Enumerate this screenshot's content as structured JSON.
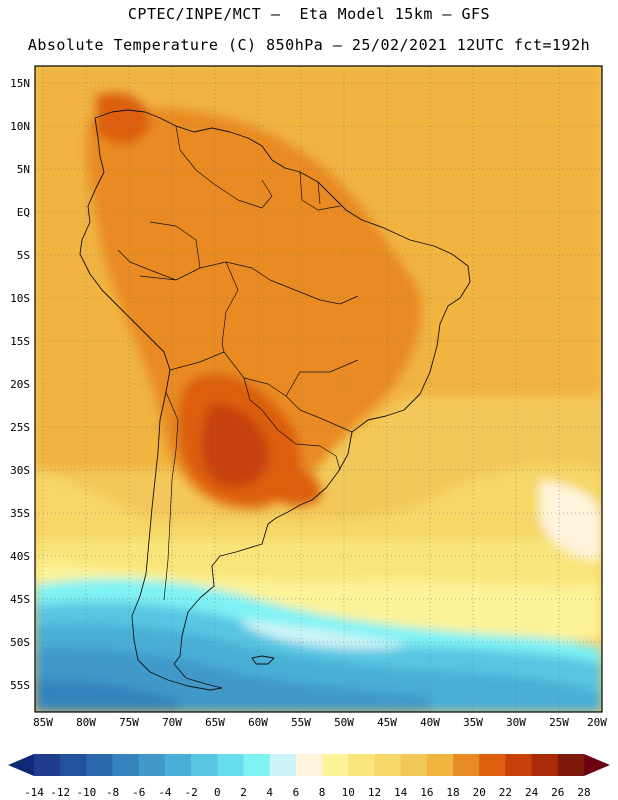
{
  "header": {
    "line1": "CPTEC/INPE/MCT –  Eta Model 15km – GFS",
    "line2": "Absolute Temperature (C) 850hPa – 25/02/2021 12UTC fct=192h"
  },
  "map": {
    "lat_labels": [
      "15N",
      "10N",
      "5N",
      "EQ",
      "5S",
      "10S",
      "15S",
      "20S",
      "25S",
      "30S",
      "35S",
      "40S",
      "45S",
      "50S",
      "55S"
    ],
    "lon_labels": [
      "85W",
      "80W",
      "75W",
      "70W",
      "65W",
      "60W",
      "55W",
      "50W",
      "45W",
      "40W",
      "35W",
      "30W",
      "25W",
      "20W"
    ]
  },
  "colorbar": {
    "labels": [
      "-14",
      "-12",
      "-10",
      "-8",
      "-6",
      "-4",
      "-2",
      "0",
      "2",
      "4",
      "6",
      "8",
      "10",
      "12",
      "14",
      "16",
      "18",
      "20",
      "22",
      "24",
      "26",
      "28"
    ],
    "under_color": "#0d2a78",
    "over_color": "#6a0010",
    "colors": [
      "#1f3c8f",
      "#23529c",
      "#2b6aab",
      "#3683bd",
      "#4199c9",
      "#4aafd6",
      "#58c6e3",
      "#66dcec",
      "#7ff2f4",
      "#cdf4f8",
      "#fff4dc",
      "#fdf398",
      "#f9e57a",
      "#f6d767",
      "#f3c85a",
      "#f1b43f",
      "#e98b24",
      "#dd5f0e",
      "#c8400a",
      "#a82a06",
      "#7d1a0c"
    ]
  }
}
